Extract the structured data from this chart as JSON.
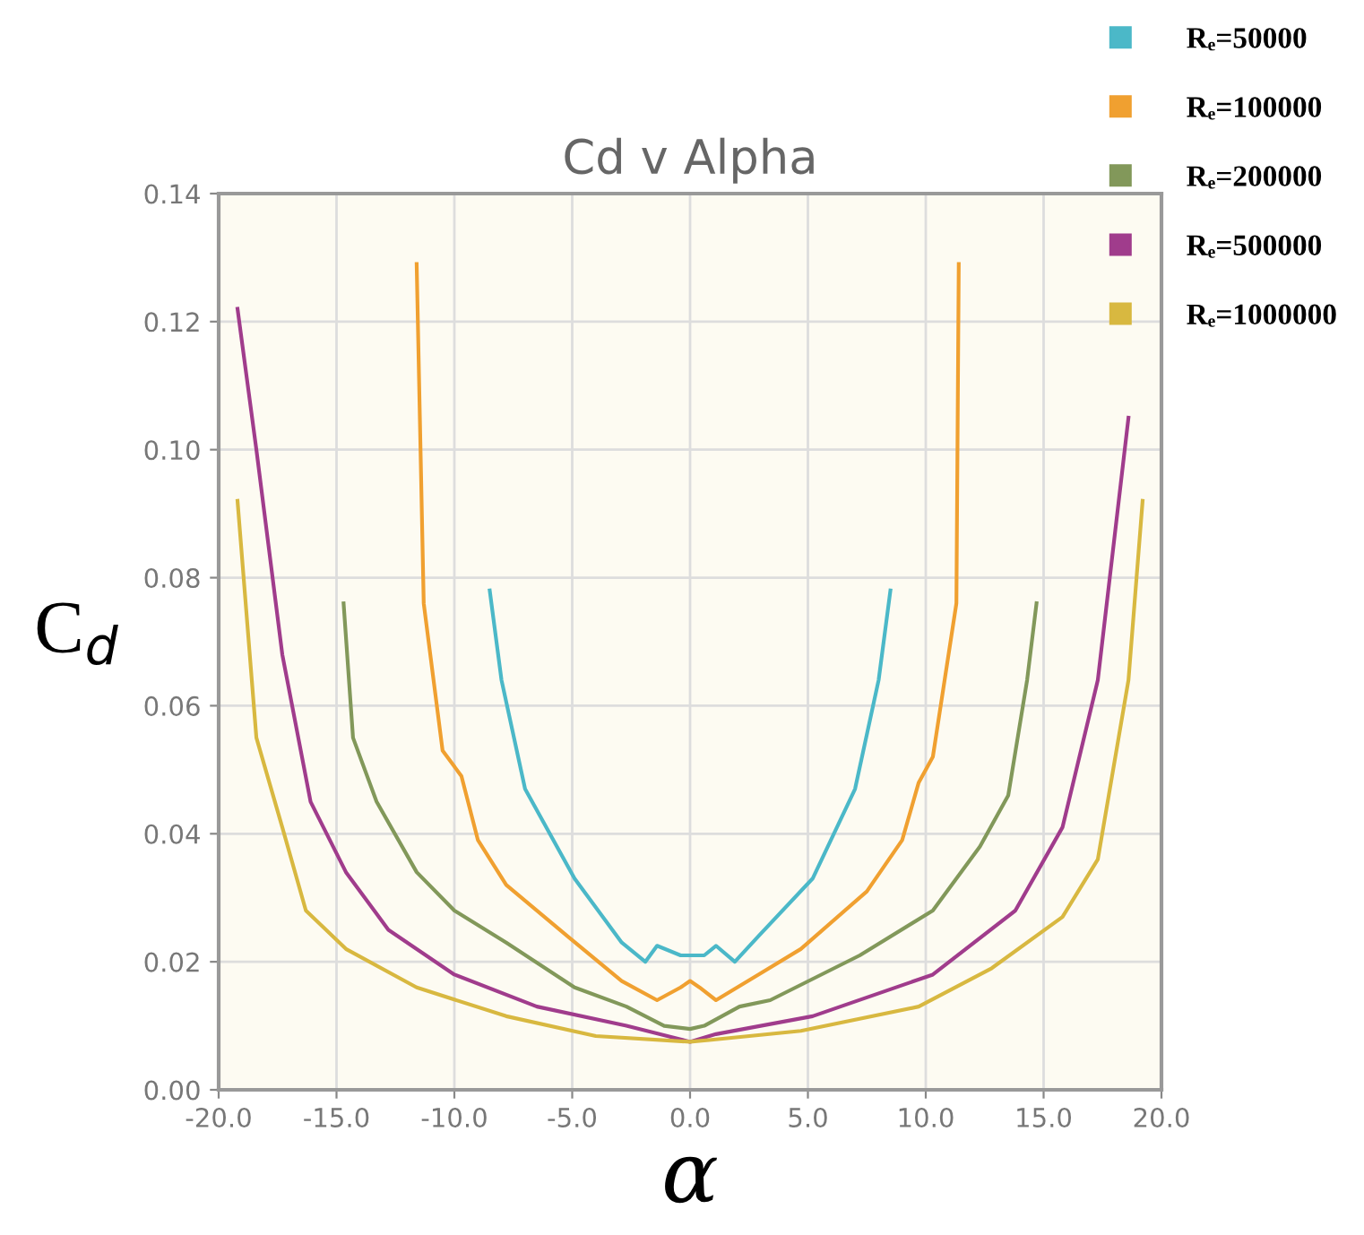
{
  "chart_data": {
    "type": "line",
    "title": "Cd v Alpha",
    "xlabel": "α",
    "ylabel": "C$_{d}$",
    "xlim": [
      -20,
      20
    ],
    "ylim": [
      0,
      0.14
    ],
    "xticks": [
      {
        "value": -20,
        "label": "-20.0"
      },
      {
        "value": -15,
        "label": "-15.0"
      },
      {
        "value": -10,
        "label": "-10.0"
      },
      {
        "value": -5,
        "label": "-5.0"
      },
      {
        "value": 0,
        "label": "0.0"
      },
      {
        "value": 5,
        "label": "5.0"
      },
      {
        "value": 10,
        "label": "10.0"
      },
      {
        "value": 15,
        "label": "15.0"
      },
      {
        "value": 20,
        "label": "20.0"
      }
    ],
    "yticks": [
      {
        "value": 0,
        "label": "0.00"
      },
      {
        "value": 0.02,
        "label": "0.02"
      },
      {
        "value": 0.04,
        "label": "0.04"
      },
      {
        "value": 0.06,
        "label": "0.06"
      },
      {
        "value": 0.08,
        "label": "0.08"
      },
      {
        "value": 0.1,
        "label": "0.10"
      },
      {
        "value": 0.12,
        "label": "0.12"
      },
      {
        "value": 0.14,
        "label": "0.14"
      }
    ],
    "grid": true,
    "legend": "top right",
    "marker": "none",
    "line_style": "solid",
    "series": [
      {
        "name": "Rₑ=50000",
        "color": "#4bb8c8",
        "x": [
          -8.5,
          -8.0,
          -7.0,
          -4.9,
          -2.9,
          -1.9,
          -1.4,
          -0.4,
          0,
          0.6,
          1.1,
          1.9,
          2.9,
          5.2,
          7.0,
          8.0,
          8.5
        ],
        "values": [
          0.078,
          0.064,
          0.047,
          0.033,
          0.023,
          0.02,
          0.0225,
          0.021,
          0.021,
          0.021,
          0.0225,
          0.02,
          0.024,
          0.033,
          0.047,
          0.064,
          0.078
        ]
      },
      {
        "name": "Rₑ=100000",
        "color": "#f0a030",
        "x": [
          -11.6,
          -11.3,
          -10.5,
          -9.7,
          -9.0,
          -7.8,
          -5.2,
          -2.9,
          -1.4,
          -0.4,
          0,
          0.4,
          1.1,
          2.9,
          4.7,
          7.5,
          9.0,
          9.7,
          10.3,
          10.8,
          11.3,
          11.4
        ],
        "values": [
          0.129,
          0.076,
          0.053,
          0.049,
          0.039,
          0.032,
          0.024,
          0.017,
          0.014,
          0.016,
          0.017,
          0.016,
          0.014,
          0.018,
          0.022,
          0.031,
          0.039,
          0.048,
          0.052,
          0.064,
          0.076,
          0.129
        ]
      },
      {
        "name": "Rₑ=200000",
        "color": "#82985a",
        "x": [
          -14.7,
          -14.3,
          -13.3,
          -11.6,
          -10.0,
          -7.8,
          -4.9,
          -2.7,
          -1.1,
          0,
          0.6,
          2.1,
          3.4,
          7.2,
          10.3,
          12.3,
          13.5,
          14.3,
          14.7
        ],
        "values": [
          0.076,
          0.055,
          0.045,
          0.034,
          0.028,
          0.023,
          0.016,
          0.013,
          0.01,
          0.0095,
          0.01,
          0.013,
          0.014,
          0.021,
          0.028,
          0.038,
          0.046,
          0.064,
          0.076
        ]
      },
      {
        "name": "Rₑ=500000",
        "color": "#a03c8c",
        "x": [
          -19.2,
          -18.4,
          -17.3,
          -16.1,
          -14.6,
          -12.8,
          -10.0,
          -6.5,
          -2.7,
          0,
          1.1,
          5.2,
          10.3,
          13.8,
          15.8,
          17.3,
          18.6
        ],
        "values": [
          0.122,
          0.1,
          0.068,
          0.045,
          0.034,
          0.025,
          0.018,
          0.013,
          0.01,
          0.0075,
          0.0087,
          0.0115,
          0.018,
          0.028,
          0.041,
          0.064,
          0.105
        ]
      },
      {
        "name": "Rₑ=1000000",
        "color": "#d8b840",
        "x": [
          -19.2,
          -18.4,
          -17.3,
          -16.3,
          -14.6,
          -11.6,
          -7.8,
          -4.0,
          0,
          0.9,
          4.7,
          9.7,
          12.8,
          15.8,
          17.3,
          18.6,
          19.2
        ],
        "values": [
          0.092,
          0.055,
          0.041,
          0.028,
          0.022,
          0.016,
          0.0115,
          0.0084,
          0.0075,
          0.0078,
          0.0092,
          0.013,
          0.019,
          0.027,
          0.036,
          0.064,
          0.092
        ]
      }
    ]
  }
}
